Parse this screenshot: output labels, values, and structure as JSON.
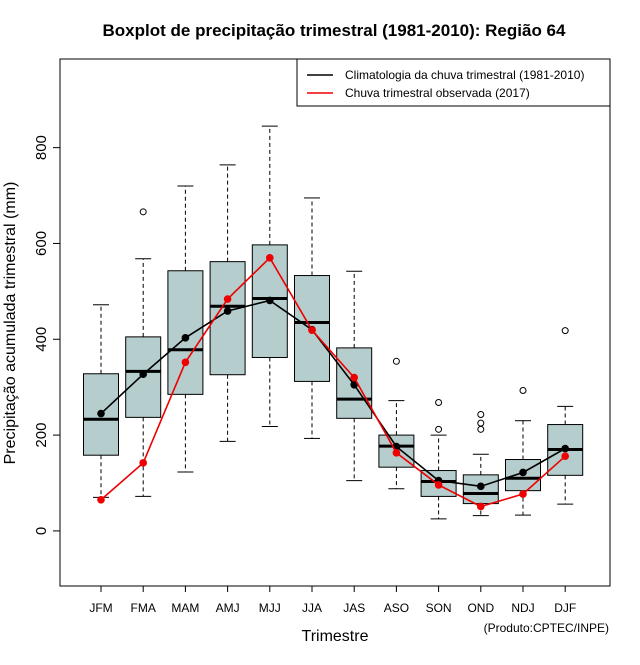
{
  "chart_data": {
    "type": "boxplot",
    "title": "Boxplot de precipitação trimestral (1981-2010): Região 64",
    "xlabel": "Trimestre",
    "ylabel": "Precipitação acumulada trimestral (mm)",
    "credit": "(Produto:CPTEC/INPE)",
    "ylim": [
      -115,
      985
    ],
    "yticks": [
      0,
      200,
      400,
      600,
      800
    ],
    "categories": [
      "JFM",
      "FMA",
      "MAM",
      "AMJ",
      "MJJ",
      "JJA",
      "JAS",
      "ASO",
      "SON",
      "OND",
      "NDJ",
      "DJF"
    ],
    "boxes": [
      {
        "category": "JFM",
        "min": 70,
        "q1": 158,
        "median": 233,
        "q3": 328,
        "max": 472,
        "outliers": []
      },
      {
        "category": "FMA",
        "min": 72,
        "q1": 237,
        "median": 333,
        "q3": 405,
        "max": 568,
        "outliers": [
          666
        ]
      },
      {
        "category": "MAM",
        "min": 123,
        "q1": 285,
        "median": 378,
        "q3": 543,
        "max": 720,
        "outliers": []
      },
      {
        "category": "AMJ",
        "min": 187,
        "q1": 326,
        "median": 469,
        "q3": 562,
        "max": 764,
        "outliers": []
      },
      {
        "category": "MJJ",
        "min": 218,
        "q1": 362,
        "median": 485,
        "q3": 597,
        "max": 845,
        "outliers": []
      },
      {
        "category": "JJA",
        "min": 193,
        "q1": 312,
        "median": 435,
        "q3": 533,
        "max": 695,
        "outliers": []
      },
      {
        "category": "JAS",
        "min": 105,
        "q1": 235,
        "median": 275,
        "q3": 382,
        "max": 542,
        "outliers": []
      },
      {
        "category": "ASO",
        "min": 88,
        "q1": 133,
        "median": 177,
        "q3": 200,
        "max": 272,
        "outliers": [
          354
        ]
      },
      {
        "category": "SON",
        "min": 25,
        "q1": 72,
        "median": 103,
        "q3": 126,
        "max": 200,
        "outliers": [
          212,
          268
        ]
      },
      {
        "category": "OND",
        "min": 32,
        "q1": 57,
        "median": 78,
        "q3": 117,
        "max": 160,
        "outliers": [
          212,
          225,
          243
        ]
      },
      {
        "category": "NDJ",
        "min": 33,
        "q1": 84,
        "median": 110,
        "q3": 149,
        "max": 230,
        "outliers": [
          293
        ]
      },
      {
        "category": "DJF",
        "min": 56,
        "q1": 116,
        "median": 170,
        "q3": 222,
        "max": 260,
        "outliers": [
          418
        ]
      }
    ],
    "series": [
      {
        "name": "Climatologia da chuva trimestral (1981-2010)",
        "color": "#000000",
        "values": [
          245,
          327,
          403,
          459,
          481,
          420,
          305,
          176,
          105,
          93,
          122,
          172
        ]
      },
      {
        "name": "Chuva trimestral observada (2017)",
        "color": "#ee0000",
        "values": [
          65,
          142,
          352,
          484,
          570,
          419,
          320,
          163,
          96,
          51,
          77,
          156
        ]
      }
    ],
    "box_fill": "#b5cdcd",
    "legend_position": "top-right"
  }
}
